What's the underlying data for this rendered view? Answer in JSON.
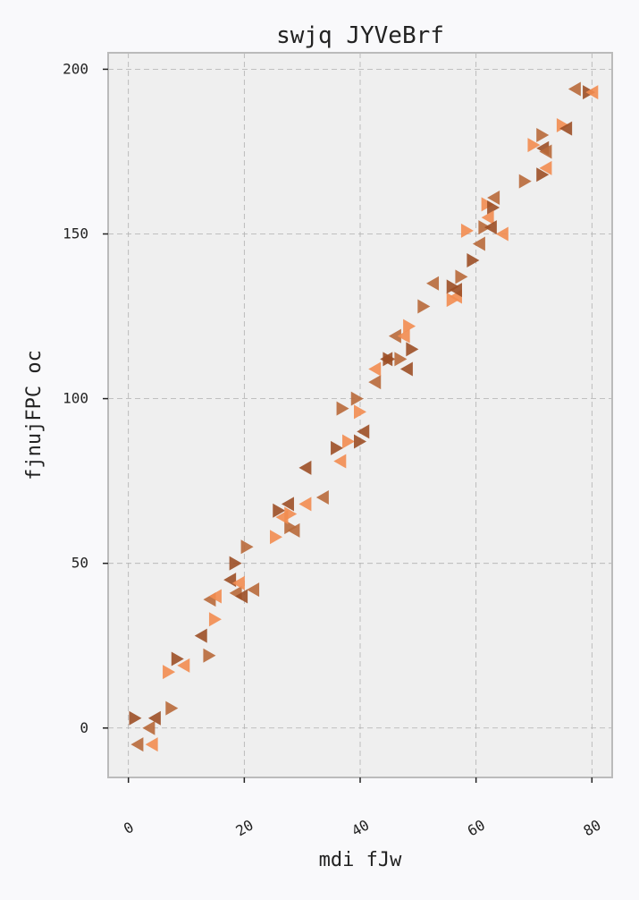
{
  "chart_data": {
    "type": "scatter",
    "title": "swjq JYVeBrf",
    "xlabel": "mdi fJw",
    "ylabel": "fjnujFPC oc",
    "xlim": [
      -3.5,
      83.5
    ],
    "ylim": [
      -15,
      205
    ],
    "xticks": [
      0,
      20,
      40,
      60,
      80
    ],
    "yticks": [
      0,
      50,
      100,
      150,
      200
    ],
    "grid": true,
    "colors": {
      "background": "#f9f9fb",
      "plot_background": "#efefef",
      "grid": "#b0b0b0",
      "frame": "#bbbbbb",
      "marker_dark": "#9c4f26",
      "marker_mid": "#b8693a",
      "marker_light": "#f28c50"
    },
    "series": [
      {
        "marker": "triangle-right",
        "points": [
          [
            1.2,
            3
          ],
          [
            7.5,
            6
          ],
          [
            7,
            17
          ],
          [
            8.5,
            21
          ],
          [
            14,
            22
          ],
          [
            15,
            33
          ],
          [
            18.5,
            50
          ],
          [
            20.5,
            55
          ],
          [
            25.5,
            58
          ],
          [
            26,
            66
          ],
          [
            28,
            61
          ],
          [
            28,
            65
          ],
          [
            36,
            85
          ],
          [
            37,
            97
          ],
          [
            38,
            87
          ],
          [
            40,
            87
          ],
          [
            39.5,
            100
          ],
          [
            40,
            96
          ],
          [
            45,
            112
          ],
          [
            47,
            112
          ],
          [
            48.5,
            122
          ],
          [
            49,
            115
          ],
          [
            51,
            128
          ],
          [
            56,
            130
          ],
          [
            56,
            134
          ],
          [
            57.5,
            137
          ],
          [
            58.5,
            151
          ],
          [
            59.5,
            142
          ],
          [
            61.5,
            152
          ],
          [
            62,
            159
          ],
          [
            63,
            158
          ],
          [
            68.5,
            166
          ],
          [
            70,
            177
          ],
          [
            71.5,
            168
          ],
          [
            71.5,
            180
          ],
          [
            75,
            183
          ],
          [
            79.5,
            193
          ]
        ]
      },
      {
        "marker": "triangle-left",
        "points": [
          [
            1.5,
            -5
          ],
          [
            4,
            -5
          ],
          [
            4.5,
            3
          ],
          [
            3.5,
            0
          ],
          [
            9.5,
            19
          ],
          [
            12.5,
            28
          ],
          [
            14,
            39
          ],
          [
            15,
            40
          ],
          [
            17.5,
            45
          ],
          [
            18.5,
            41
          ],
          [
            19,
            44
          ],
          [
            19.5,
            40
          ],
          [
            21.5,
            42
          ],
          [
            26.5,
            64
          ],
          [
            27.5,
            68
          ],
          [
            28.5,
            60
          ],
          [
            30.5,
            68
          ],
          [
            30.5,
            79
          ],
          [
            33.5,
            70
          ],
          [
            36.5,
            81
          ],
          [
            40.5,
            90
          ],
          [
            42.5,
            105
          ],
          [
            42.5,
            109
          ],
          [
            44.5,
            112
          ],
          [
            46,
            119
          ],
          [
            47.5,
            119
          ],
          [
            48,
            109
          ],
          [
            52.5,
            135
          ],
          [
            56.5,
            131
          ],
          [
            56.5,
            133
          ],
          [
            60.5,
            147
          ],
          [
            62,
            155
          ],
          [
            62.5,
            152
          ],
          [
            63,
            161
          ],
          [
            64.5,
            150
          ],
          [
            71.5,
            176
          ],
          [
            72,
            175
          ],
          [
            72,
            170
          ],
          [
            75.5,
            182
          ],
          [
            77,
            194
          ],
          [
            80,
            193
          ]
        ]
      }
    ]
  }
}
